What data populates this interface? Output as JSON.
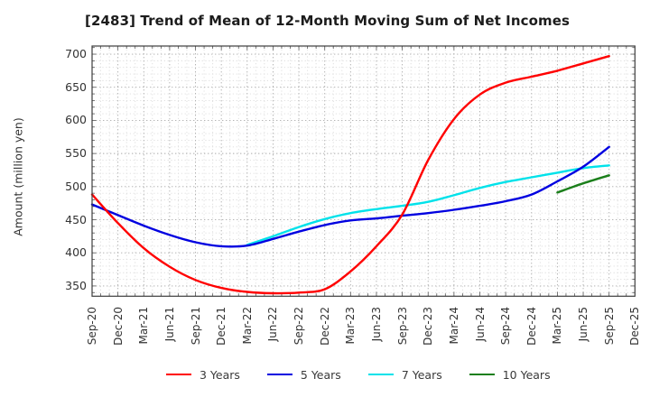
{
  "title": "[2483]  Trend of Mean of 12-Month Moving Sum of Net Incomes",
  "chart_data": {
    "type": "line",
    "title": "[2483]  Trend of Mean of 12-Month Moving Sum of Net Incomes",
    "xlabel": "",
    "ylabel": "Amount (million yen)",
    "ylim": [
      335,
      712
    ],
    "yticks": [
      350,
      400,
      450,
      500,
      550,
      600,
      650,
      700
    ],
    "grid": "dotted gray; major every 50 y-units and every quarter; minor every 10 y-units and every month",
    "legend_position": "bottom",
    "categories": [
      "Sep-20",
      "Dec-20",
      "Mar-21",
      "Jun-21",
      "Sep-21",
      "Dec-21",
      "Mar-22",
      "Jun-22",
      "Sep-22",
      "Dec-22",
      "Mar-23",
      "Jun-23",
      "Sep-23",
      "Dec-23",
      "Mar-24",
      "Jun-24",
      "Sep-24",
      "Dec-24",
      "Mar-25",
      "Jun-25",
      "Sep-25",
      "Dec-25"
    ],
    "series": [
      {
        "name": "3 Years",
        "color": "#ff0000",
        "values": [
          488,
          445,
          407,
          379,
          359,
          347,
          341,
          339,
          340,
          345,
          372,
          410,
          458,
          540,
          602,
          639,
          657,
          666,
          675,
          686,
          697,
          null
        ]
      },
      {
        "name": "5 Years",
        "color": "#0000e0",
        "values": [
          473,
          457,
          441,
          427,
          416,
          410,
          411,
          421,
          432,
          442,
          449,
          452,
          456,
          460,
          465,
          471,
          478,
          488,
          508,
          530,
          560,
          null
        ]
      },
      {
        "name": "7 Years",
        "color": "#00e2ea",
        "values": [
          null,
          null,
          null,
          null,
          null,
          null,
          412,
          425,
          439,
          451,
          460,
          466,
          471,
          477,
          487,
          498,
          507,
          514,
          521,
          528,
          532,
          null
        ]
      },
      {
        "name": "10 Years",
        "color": "#1b7f1b",
        "values": [
          null,
          null,
          null,
          null,
          null,
          null,
          null,
          null,
          null,
          null,
          null,
          null,
          null,
          null,
          null,
          null,
          null,
          null,
          491,
          505,
          517,
          null
        ]
      }
    ]
  },
  "legend": {
    "items": [
      {
        "label": "3 Years",
        "color": "#ff0000"
      },
      {
        "label": "5 Years",
        "color": "#0000e0"
      },
      {
        "label": "7 Years",
        "color": "#00e2ea"
      },
      {
        "label": "10 Years",
        "color": "#1b7f1b"
      }
    ]
  }
}
